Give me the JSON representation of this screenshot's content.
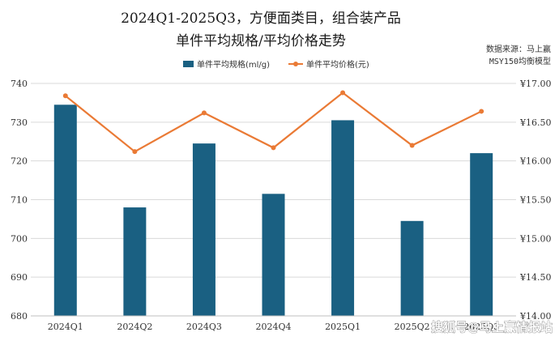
{
  "title_line1": "2024Q1-2025Q3，方便面类目，组合装产品",
  "title_line2": "单件平均规格/平均价格走势",
  "source_line1": "数据来源：马上赢",
  "source_line2": "MSY150均衡模型",
  "watermark": "搜狐号@马上赢情报站",
  "colors": {
    "bar": "#1a6082",
    "line": "#ea7a35",
    "grid": "#d9d9d9"
  },
  "chart_data": {
    "type": "bar+line",
    "categories": [
      "2024Q1",
      "2024Q2",
      "2024Q3",
      "2024Q4",
      "2025Q1",
      "2025Q2",
      "2025Q3"
    ],
    "series": [
      {
        "name": "单件平均规格(ml/g)",
        "type": "bar",
        "axis": "left",
        "values": [
          734.5,
          708,
          724.5,
          711.5,
          730.5,
          704.5,
          722
        ]
      },
      {
        "name": "单件平均价格(元)",
        "type": "line",
        "axis": "right",
        "values": [
          16.84,
          16.12,
          16.62,
          16.17,
          16.88,
          16.2,
          16.64
        ]
      }
    ],
    "y_left": {
      "min": 680,
      "max": 740,
      "ticks": [
        "680",
        "690",
        "700",
        "710",
        "720",
        "730",
        "740"
      ]
    },
    "y_right": {
      "min": 14.0,
      "max": 17.0,
      "ticks": [
        "¥14.00",
        "¥14.50",
        "¥15.00",
        "¥15.50",
        "¥16.00",
        "¥16.50",
        "¥17.00"
      ]
    },
    "grid": true,
    "legend": "top-center"
  }
}
